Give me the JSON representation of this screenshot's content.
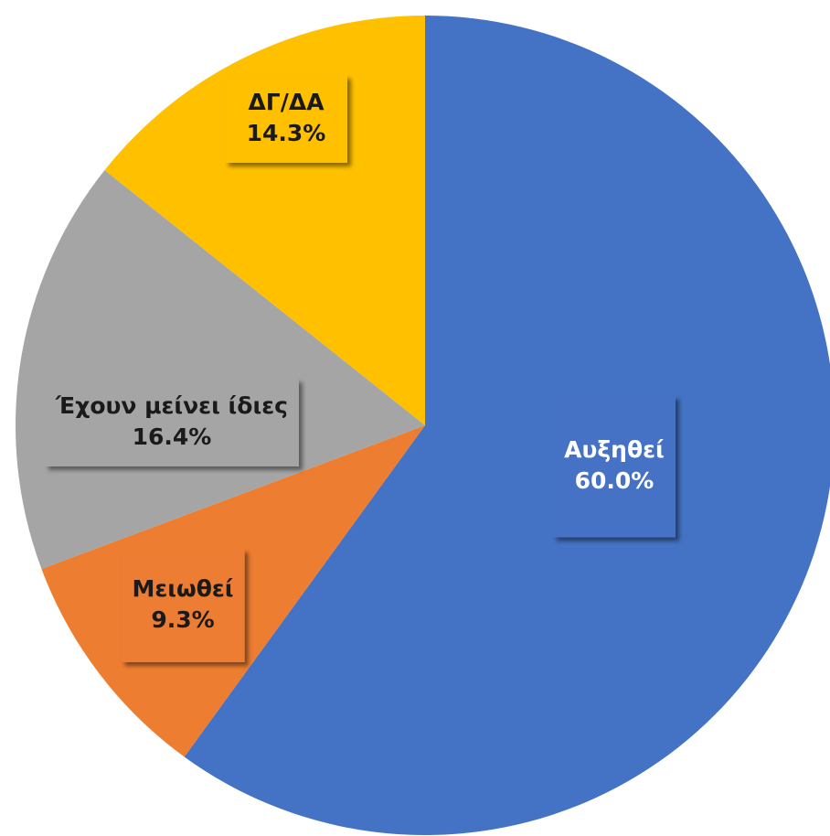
{
  "chart_data": {
    "type": "pie",
    "categories": [
      "Αυξηθεί",
      "Μειωθεί",
      "Έχουν μείνει ίδιες",
      "ΔΓ/ΔΑ"
    ],
    "values": [
      60.0,
      9.3,
      16.4,
      14.3
    ],
    "value_labels": [
      "60.0%",
      "9.3%",
      "16.4%",
      "14.3%"
    ],
    "colors": [
      "#4472c4",
      "#ed7d31",
      "#a5a5a5",
      "#ffc000"
    ]
  }
}
